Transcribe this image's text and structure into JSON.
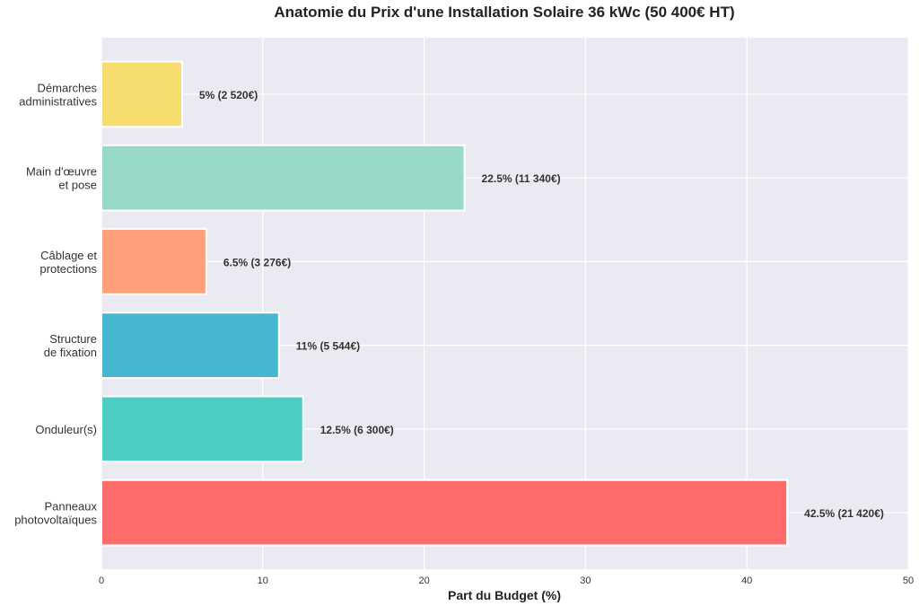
{
  "chart_data": {
    "type": "bar",
    "orientation": "horizontal",
    "title": "Anatomie du Prix d'une Installation Solaire 36 kWc (50 400€ HT)",
    "xlabel": "Part du Budget (%)",
    "ylabel": "",
    "xlim": [
      0,
      50
    ],
    "xticks": [
      0,
      10,
      20,
      30,
      40,
      50
    ],
    "grid": true,
    "background": "#EAEAF2",
    "categories": [
      [
        "Panneaux",
        "photovoltaïques"
      ],
      [
        "Onduleur(s)"
      ],
      [
        "Structure",
        "de fixation"
      ],
      [
        "Câblage et",
        "protections"
      ],
      [
        "Main d'œuvre",
        "et pose"
      ],
      [
        "Démarches",
        "administratives"
      ]
    ],
    "values": [
      42.5,
      12.5,
      11,
      6.5,
      22.5,
      5
    ],
    "data_labels": [
      "42.5% (21 420€)",
      "12.5% (6 300€)",
      "11% (5 544€)",
      "6.5% (3 276€)",
      "22.5% (11 340€)",
      "5% (2 520€)"
    ],
    "colors": [
      "#FF6B6B",
      "#4ECDC4",
      "#45B7D1",
      "#FFA07A",
      "#98D8C8",
      "#F7DC6F"
    ]
  }
}
